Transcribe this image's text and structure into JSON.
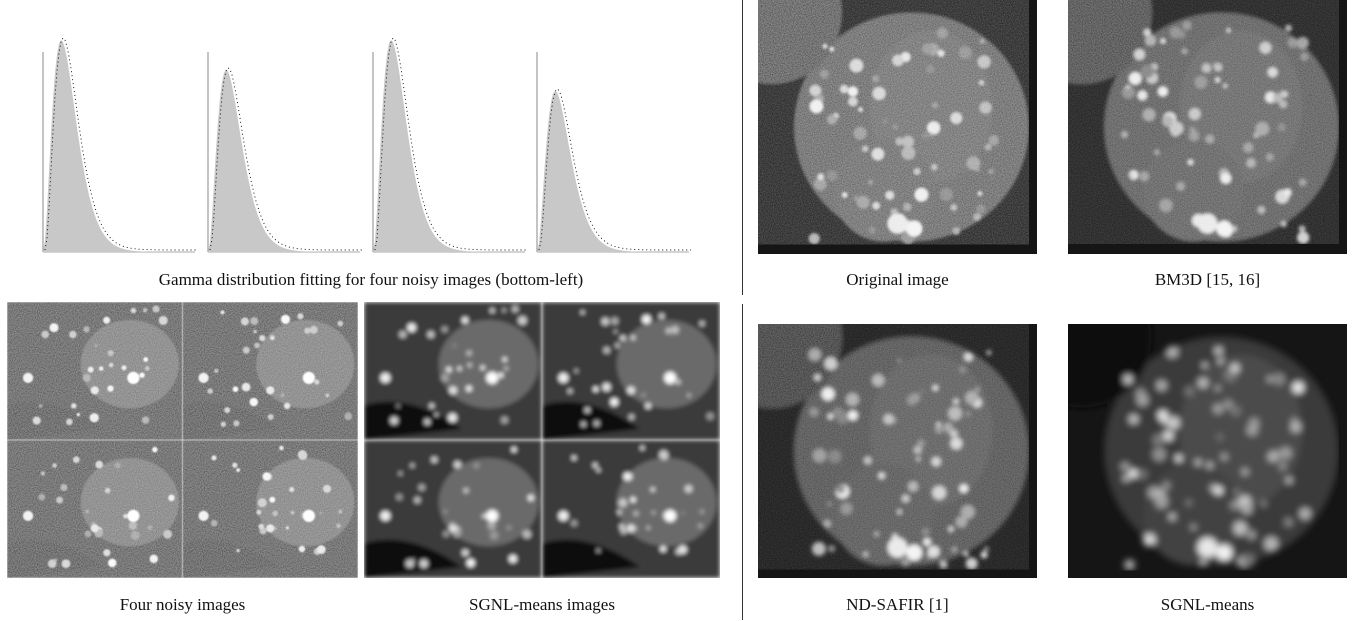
{
  "captions": {
    "gamma_fitting": "Gamma distribution fitting for four noisy images (bottom-left)",
    "four_noisy": "Four noisy images",
    "sgnl_images": "SGNL-means images",
    "original": "Original image",
    "bm3d": "BM3D [15, 16]",
    "ndsafir": "ND-SAFIR [1]",
    "sgnl": "SGNL-means"
  },
  "colors": {
    "histogram_fill": "#c8c8c8",
    "fit_curve": "#000000",
    "background": "#ffffff"
  },
  "chart_data": [
    {
      "type": "area",
      "title": "",
      "panel": 1,
      "series": [
        {
          "name": "",
          "mode": 0.06,
          "peak": 1.0,
          "shape": "gamma"
        }
      ]
    },
    {
      "type": "area",
      "title": "",
      "panel": 2,
      "series": [
        {
          "name": "",
          "mode": 0.06,
          "peak": 0.86,
          "shape": "gamma"
        }
      ]
    },
    {
      "type": "area",
      "title": "",
      "panel": 3,
      "series": [
        {
          "name": "",
          "mode": 0.06,
          "peak": 1.0,
          "shape": "gamma"
        }
      ]
    },
    {
      "type": "area",
      "title": "",
      "panel": 4,
      "series": [
        {
          "name": "",
          "mode": 0.06,
          "peak": 0.76,
          "shape": "gamma"
        }
      ]
    }
  ]
}
